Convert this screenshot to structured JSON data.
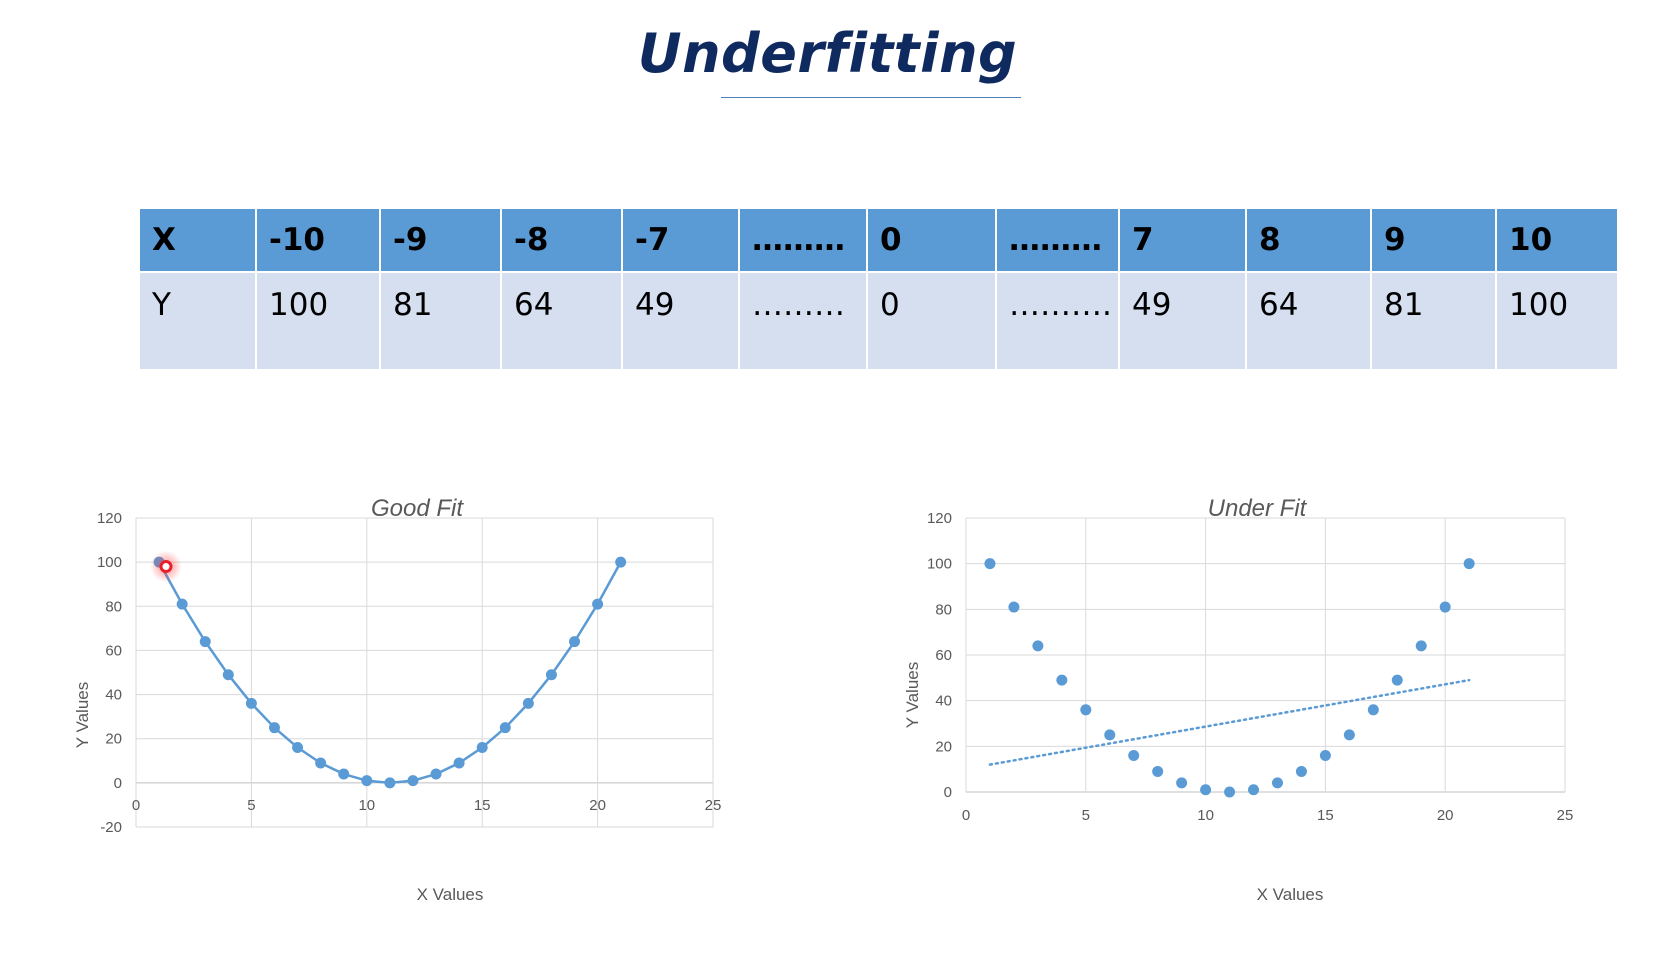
{
  "page": {
    "title": "Underfitting"
  },
  "table": {
    "x_label": "X",
    "y_label": "Y",
    "x_values": [
      "-10",
      "-9",
      "-8",
      "-7",
      "………",
      "0",
      "………",
      "7",
      "8",
      "9",
      "10"
    ],
    "y_values": [
      "100",
      "81",
      "64",
      "49",
      "………",
      "0",
      "……….",
      "49",
      "64",
      "81",
      "100"
    ]
  },
  "colors": {
    "series": "#5b9bd5",
    "header": "#5b9bd5",
    "row": "#d5dff0",
    "title": "#0f2a5e",
    "highlight": "#e8202a"
  },
  "chart_data": [
    {
      "type": "line",
      "title": "Good Fit",
      "xlabel": "X Values",
      "ylabel": "Y Values",
      "xlim": [
        0,
        25
      ],
      "ylim": [
        -20,
        120
      ],
      "xticks": [
        0,
        5,
        10,
        15,
        20,
        25
      ],
      "yticks": [
        -20,
        0,
        20,
        40,
        60,
        80,
        100,
        120
      ],
      "grid": true,
      "x": [
        1,
        2,
        3,
        4,
        5,
        6,
        7,
        8,
        9,
        10,
        11,
        12,
        13,
        14,
        15,
        16,
        17,
        18,
        19,
        20,
        21
      ],
      "y": [
        100,
        81,
        64,
        49,
        36,
        25,
        16,
        9,
        4,
        1,
        0,
        1,
        4,
        9,
        16,
        25,
        36,
        49,
        64,
        81,
        100
      ],
      "highlight_point": {
        "x": 1.3,
        "y": 98
      }
    },
    {
      "type": "scatter",
      "title": "Under Fit",
      "xlabel": "X Values",
      "ylabel": "Y Values",
      "xlim": [
        0,
        25
      ],
      "ylim": [
        0,
        120
      ],
      "xticks": [
        0,
        5,
        10,
        15,
        20,
        25
      ],
      "yticks": [
        0,
        20,
        40,
        60,
        80,
        100,
        120
      ],
      "grid": true,
      "x": [
        1,
        2,
        3,
        4,
        5,
        6,
        7,
        8,
        9,
        10,
        11,
        12,
        13,
        14,
        15,
        16,
        17,
        18,
        19,
        20,
        21
      ],
      "y": [
        100,
        81,
        64,
        49,
        36,
        25,
        16,
        9,
        4,
        1,
        0,
        1,
        4,
        9,
        16,
        25,
        36,
        49,
        64,
        81,
        100
      ],
      "trendline": {
        "style": "dotted",
        "x": [
          1,
          21
        ],
        "y": [
          12,
          49
        ]
      }
    }
  ]
}
